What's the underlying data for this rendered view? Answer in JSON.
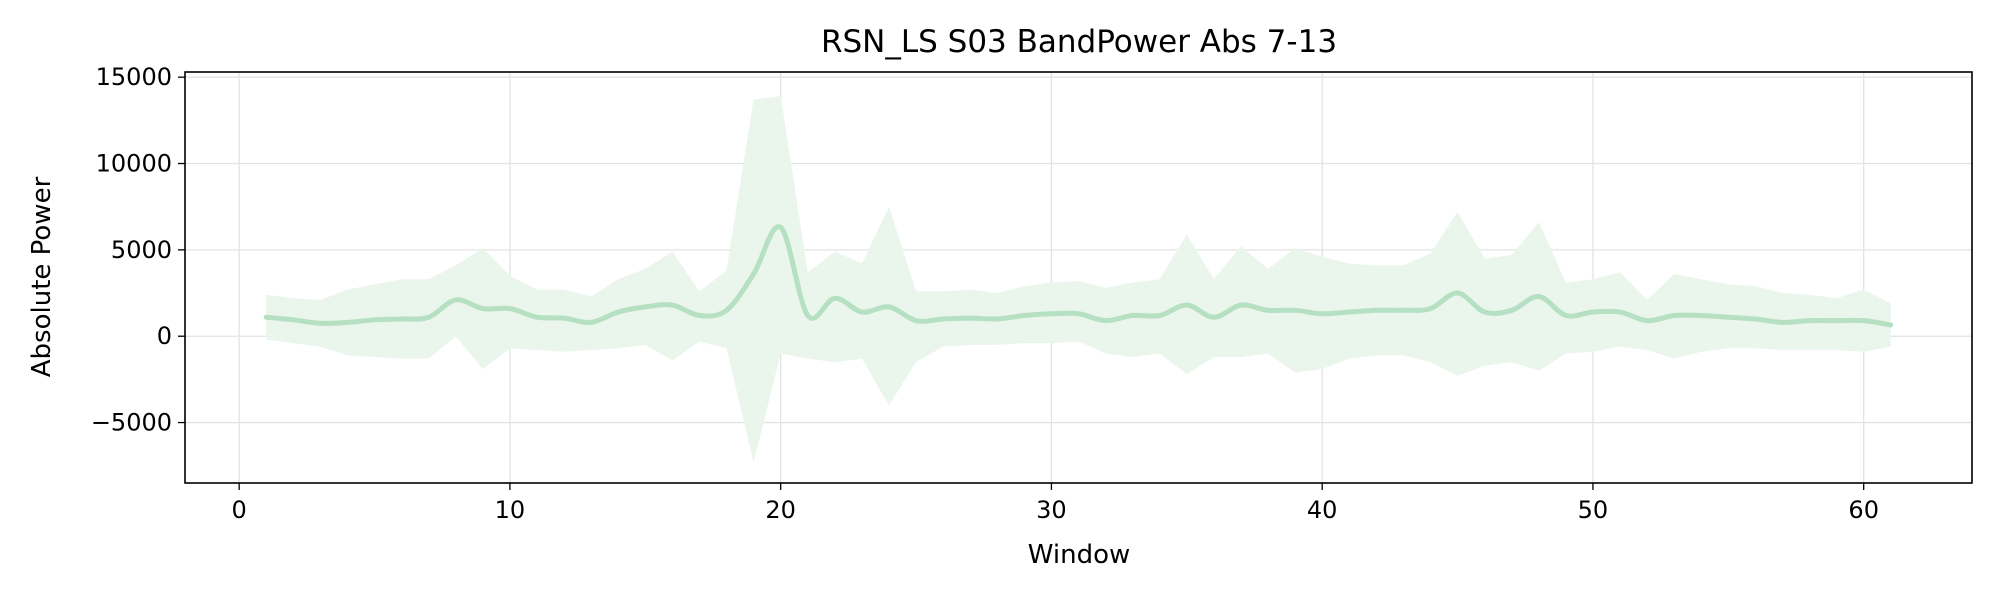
{
  "chart_data": {
    "type": "line",
    "title": "RSN_LS S03 BandPower Abs 7-13",
    "xlabel": "Window",
    "ylabel": "Absolute Power",
    "xlim": [
      -2,
      64
    ],
    "ylim": [
      -8500,
      15300
    ],
    "xticks": [
      0,
      10,
      20,
      30,
      40,
      50,
      60
    ],
    "yticks": [
      -5000,
      0,
      5000,
      10000,
      15000
    ],
    "xtick_labels": [
      "0",
      "10",
      "20",
      "30",
      "40",
      "50",
      "60"
    ],
    "ytick_labels": [
      "−5000",
      "0",
      "5000",
      "10000",
      "15000"
    ],
    "grid": true,
    "line_color": "#b5e0c2",
    "band_color": "#eaf5ec",
    "series": [
      {
        "x": [
          1,
          2,
          3,
          4,
          5,
          6,
          7,
          8,
          9,
          10,
          11,
          12,
          13,
          14,
          15,
          16,
          17,
          18,
          19,
          20,
          21,
          22,
          23,
          24,
          25,
          26,
          27,
          28,
          29,
          30,
          31,
          32,
          33,
          34,
          35,
          36,
          37,
          38,
          39,
          40,
          41,
          42,
          43,
          44,
          45,
          46,
          47,
          48,
          49,
          50,
          51,
          52,
          53,
          54,
          55,
          56,
          57,
          58,
          59,
          60,
          61
        ],
        "y": [
          1100,
          950,
          750,
          800,
          950,
          1000,
          1100,
          2100,
          1600,
          1600,
          1100,
          1050,
          800,
          1400,
          1700,
          1800,
          1200,
          1500,
          3600,
          6300,
          1200,
          2200,
          1400,
          1700,
          900,
          1000,
          1050,
          1000,
          1200,
          1300,
          1300,
          900,
          1200,
          1200,
          1800,
          1100,
          1800,
          1500,
          1500,
          1300,
          1400,
          1500,
          1500,
          1600,
          2500,
          1400,
          1500,
          2300,
          1200,
          1400,
          1400,
          900,
          1200,
          1200,
          1100,
          1000,
          800,
          900,
          900,
          900,
          650
        ],
        "lower": [
          -200,
          -400,
          -600,
          -1100,
          -1200,
          -1300,
          -1300,
          0,
          -1900,
          -700,
          -800,
          -900,
          -800,
          -700,
          -500,
          -1400,
          -300,
          -700,
          -7300,
          -1000,
          -1300,
          -1500,
          -1300,
          -4000,
          -1500,
          -600,
          -500,
          -500,
          -400,
          -400,
          -300,
          -1000,
          -1200,
          -1000,
          -2200,
          -1200,
          -1200,
          -1000,
          -2100,
          -1900,
          -1300,
          -1100,
          -1100,
          -1500,
          -2300,
          -1700,
          -1500,
          -2000,
          -1000,
          -900,
          -600,
          -800,
          -1300,
          -900,
          -700,
          -700,
          -800,
          -800,
          -800,
          -900,
          -600
        ],
        "upper": [
          2400,
          2200,
          2100,
          2700,
          3000,
          3300,
          3300,
          4100,
          5100,
          3500,
          2700,
          2700,
          2300,
          3300,
          3900,
          4900,
          2600,
          3800,
          13700,
          13900,
          3700,
          4900,
          4200,
          7500,
          2600,
          2600,
          2700,
          2500,
          2900,
          3100,
          3200,
          2800,
          3100,
          3300,
          5900,
          3300,
          5200,
          3900,
          5100,
          4600,
          4200,
          4100,
          4100,
          4800,
          7200,
          4500,
          4700,
          6600,
          3100,
          3300,
          3700,
          2100,
          3600,
          3300,
          3000,
          2900,
          2500,
          2400,
          2200,
          2700,
          1900
        ]
      }
    ]
  }
}
